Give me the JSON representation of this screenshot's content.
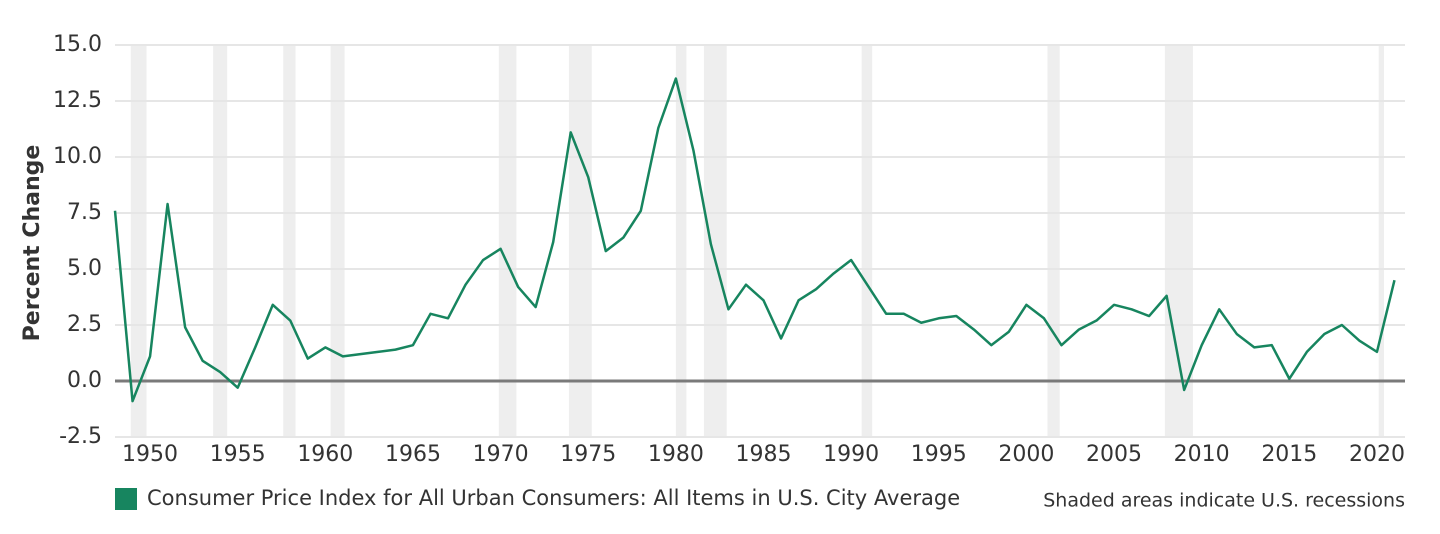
{
  "chart_data": {
    "type": "line",
    "y_label": "Percent Change",
    "x": [
      1948,
      1949,
      1950,
      1951,
      1952,
      1953,
      1954,
      1955,
      1956,
      1957,
      1958,
      1959,
      1960,
      1961,
      1962,
      1963,
      1964,
      1965,
      1966,
      1967,
      1968,
      1969,
      1970,
      1971,
      1972,
      1973,
      1974,
      1975,
      1976,
      1977,
      1978,
      1979,
      1980,
      1981,
      1982,
      1983,
      1984,
      1985,
      1986,
      1987,
      1988,
      1989,
      1990,
      1991,
      1992,
      1993,
      1994,
      1995,
      1996,
      1997,
      1998,
      1999,
      2000,
      2001,
      2002,
      2003,
      2004,
      2005,
      2006,
      2007,
      2008,
      2009,
      2010,
      2011,
      2012,
      2013,
      2014,
      2015,
      2016,
      2017,
      2018,
      2019,
      2020,
      2021
    ],
    "series": [
      {
        "name": "Consumer Price Index for All Urban Consumers: All Items in U.S. City Average",
        "color": "#17855f",
        "values": [
          7.6,
          -0.9,
          1.1,
          7.9,
          2.4,
          0.9,
          0.4,
          -0.3,
          1.5,
          3.4,
          2.7,
          1.0,
          1.5,
          1.1,
          1.2,
          1.3,
          1.4,
          1.6,
          3.0,
          2.8,
          4.3,
          5.4,
          5.9,
          4.2,
          3.3,
          6.2,
          11.1,
          9.1,
          5.8,
          6.4,
          7.6,
          11.3,
          13.5,
          10.3,
          6.1,
          3.2,
          4.3,
          3.6,
          1.9,
          3.6,
          4.1,
          4.8,
          5.4,
          4.2,
          3.0,
          3.0,
          2.6,
          2.8,
          2.9,
          2.3,
          1.6,
          2.2,
          3.4,
          2.8,
          1.6,
          2.3,
          2.7,
          3.4,
          3.2,
          2.9,
          3.8,
          -0.4,
          1.6,
          3.2,
          2.1,
          1.5,
          1.6,
          0.1,
          1.3,
          2.1,
          2.5,
          1.8,
          1.3,
          4.5
        ]
      }
    ],
    "recessions": [
      [
        1948.9,
        1949.8
      ],
      [
        1953.6,
        1954.4
      ],
      [
        1957.6,
        1958.3
      ],
      [
        1960.3,
        1961.1
      ],
      [
        1969.9,
        1970.9
      ],
      [
        1973.9,
        1975.2
      ],
      [
        1980.0,
        1980.6
      ],
      [
        1981.6,
        1982.9
      ],
      [
        1990.6,
        1991.2
      ],
      [
        2001.2,
        2001.9
      ],
      [
        2007.9,
        2009.5
      ],
      [
        2020.1,
        2020.4
      ]
    ],
    "recession_color": "#eeeeee",
    "note": "Shaded areas indicate U.S. recessions",
    "xlim": [
      1948,
      2021.6
    ],
    "xticks": [
      1950,
      1955,
      1960,
      1965,
      1970,
      1975,
      1980,
      1985,
      1990,
      1995,
      2000,
      2005,
      2010,
      2015,
      2020
    ],
    "ylim": [
      -2.5,
      15
    ],
    "yticks": [
      -2.5,
      {
        "value": 0,
        "label": "0.0"
      },
      2.5,
      {
        "value": 5,
        "label": "5.0"
      },
      7.5,
      {
        "value": 10,
        "label": "10.0"
      },
      12.5,
      {
        "value": 15,
        "label": "15.0"
      }
    ],
    "grid": true
  }
}
